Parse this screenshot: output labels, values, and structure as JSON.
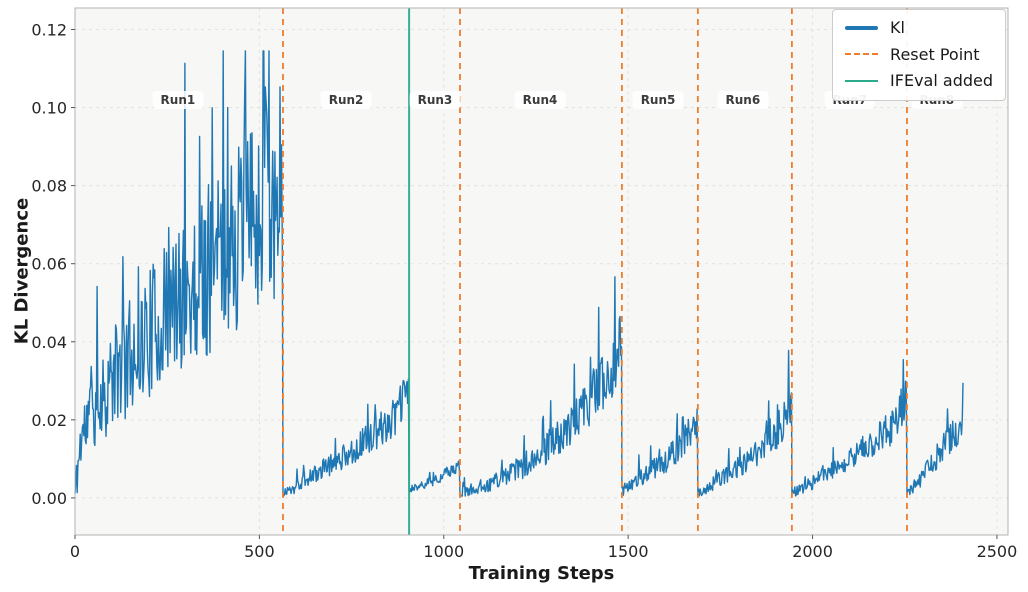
{
  "chart_data": {
    "type": "line",
    "title": "",
    "xlabel": "Training Steps",
    "ylabel": "KL Divergence",
    "xlim": [
      0,
      2530
    ],
    "ylim": [
      -0.0095,
      0.1255
    ],
    "x_ticks": [
      0,
      500,
      1000,
      1500,
      2000,
      2500
    ],
    "y_ticks": [
      0.0,
      0.02,
      0.04,
      0.06,
      0.08,
      0.1,
      0.12
    ],
    "grid": true,
    "plot_bg_color": "#f7f7f5",
    "grid_color": "#e2e2e0",
    "tick_label_color": "#262626",
    "spine_color": "#b3b3b3",
    "tick_mark_color": "#555555",
    "series_color": "#1f77b4",
    "reset_color": "#ee7d2e",
    "ifeval_color": "#2bab8c",
    "legend": {
      "position": "upper right",
      "entries": [
        {
          "label": "Kl",
          "color": "#1f77b4",
          "style": "solid-thick"
        },
        {
          "label": "Reset Point",
          "color": "#ee7d2e",
          "style": "dashed"
        },
        {
          "label": "IFEval added",
          "color": "#2bab8c",
          "style": "solid"
        }
      ]
    },
    "reset_points": [
      564,
      1044,
      1483,
      1689,
      1944,
      2256
    ],
    "ifeval_added_x": 906,
    "run_labels": [
      {
        "label": "Run1",
        "x": 279,
        "y": 0.102
      },
      {
        "label": "Run2",
        "x": 735,
        "y": 0.102
      },
      {
        "label": "Run3",
        "x": 976,
        "y": 0.102
      },
      {
        "label": "Run4",
        "x": 1261,
        "y": 0.102
      },
      {
        "label": "Run5",
        "x": 1581,
        "y": 0.102
      },
      {
        "label": "Run6",
        "x": 1811,
        "y": 0.102
      },
      {
        "label": "Run7",
        "x": 2101,
        "y": 0.102
      },
      {
        "label": "Run8",
        "x": 2337,
        "y": 0.102
      }
    ],
    "series": {
      "name": "Kl",
      "sample_step": 2,
      "seed": 11,
      "value_clamp": [
        0.0005,
        0.1145
      ],
      "runs": [
        {
          "name": "Run1",
          "start": 0,
          "end": 564,
          "trend": [
            [
              0,
              0.001
            ],
            [
              0.03,
              0.016
            ],
            [
              0.1,
              0.024
            ],
            [
              0.2,
              0.032
            ],
            [
              0.35,
              0.042
            ],
            [
              0.5,
              0.05
            ],
            [
              0.65,
              0.058
            ],
            [
              0.8,
              0.068
            ],
            [
              0.92,
              0.075
            ],
            [
              1,
              0.08
            ]
          ],
          "noise": [
            0.004,
            0.3
          ],
          "spike": [
            0.05,
            2.2
          ]
        },
        {
          "name": "Run2",
          "start": 564,
          "end": 906,
          "trend": [
            [
              0,
              0.001
            ],
            [
              0.15,
              0.004
            ],
            [
              0.35,
              0.008
            ],
            [
              0.55,
              0.012
            ],
            [
              0.75,
              0.017
            ],
            [
              0.9,
              0.021
            ],
            [
              1,
              0.029
            ]
          ],
          "noise": [
            0.0012,
            0.18
          ],
          "spike": [
            0.05,
            1.8
          ]
        },
        {
          "name": "Run3",
          "start": 906,
          "end": 1044,
          "trend": [
            [
              0,
              0.002
            ],
            [
              0.4,
              0.004
            ],
            [
              0.7,
              0.006
            ],
            [
              1,
              0.008
            ]
          ],
          "noise": [
            0.0008,
            0.12
          ],
          "spike": [
            0.04,
            1.5
          ]
        },
        {
          "name": "Run4",
          "start": 1044,
          "end": 1483,
          "trend": [
            [
              0,
              0.001
            ],
            [
              0.2,
              0.004
            ],
            [
              0.4,
              0.008
            ],
            [
              0.55,
              0.013
            ],
            [
              0.7,
              0.019
            ],
            [
              0.82,
              0.026
            ],
            [
              0.92,
              0.032
            ],
            [
              1,
              0.04
            ]
          ],
          "noise": [
            0.0012,
            0.22
          ],
          "spike": [
            0.06,
            1.9
          ]
        },
        {
          "name": "Run5",
          "start": 1483,
          "end": 1689,
          "trend": [
            [
              0,
              0.002
            ],
            [
              0.3,
              0.006
            ],
            [
              0.55,
              0.009
            ],
            [
              0.75,
              0.013
            ],
            [
              0.9,
              0.017
            ],
            [
              1,
              0.019
            ]
          ],
          "noise": [
            0.0012,
            0.2
          ],
          "spike": [
            0.06,
            1.8
          ]
        },
        {
          "name": "Run6",
          "start": 1689,
          "end": 1944,
          "trend": [
            [
              0,
              0.001
            ],
            [
              0.25,
              0.005
            ],
            [
              0.5,
              0.009
            ],
            [
              0.7,
              0.013
            ],
            [
              0.85,
              0.017
            ],
            [
              1,
              0.025
            ]
          ],
          "noise": [
            0.0012,
            0.2
          ],
          "spike": [
            0.05,
            1.8
          ]
        },
        {
          "name": "Run7",
          "start": 1944,
          "end": 2256,
          "trend": [
            [
              0,
              0.001
            ],
            [
              0.25,
              0.005
            ],
            [
              0.5,
              0.01
            ],
            [
              0.7,
              0.014
            ],
            [
              0.85,
              0.018
            ],
            [
              1,
              0.025
            ]
          ],
          "noise": [
            0.0012,
            0.2
          ],
          "spike": [
            0.05,
            1.8
          ]
        },
        {
          "name": "Run8",
          "start": 2256,
          "end": 2410,
          "trend": [
            [
              0,
              0.001
            ],
            [
              0.3,
              0.006
            ],
            [
              0.6,
              0.012
            ],
            [
              0.8,
              0.016
            ],
            [
              1,
              0.018
            ]
          ],
          "noise": [
            0.0012,
            0.2
          ],
          "spike": [
            0.05,
            1.6
          ]
        }
      ]
    }
  }
}
